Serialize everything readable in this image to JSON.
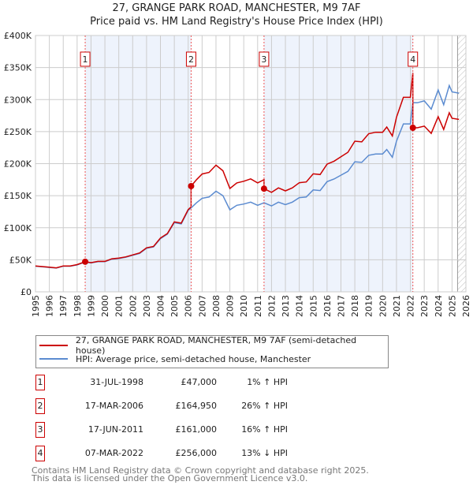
{
  "header": {
    "title": "27, GRANGE PARK ROAD, MANCHESTER, M9 7AF",
    "subtitle": "Price paid vs. HM Land Registry's House Price Index (HPI)"
  },
  "chart_data": {
    "type": "line",
    "ylim": [
      0,
      400000
    ],
    "xlim": [
      1995,
      2026
    ],
    "y_ticks": [
      {
        "v": 0,
        "label": "£0"
      },
      {
        "v": 50000,
        "label": "£50K"
      },
      {
        "v": 100000,
        "label": "£100K"
      },
      {
        "v": 150000,
        "label": "£150K"
      },
      {
        "v": 200000,
        "label": "£200K"
      },
      {
        "v": 250000,
        "label": "£250K"
      },
      {
        "v": 300000,
        "label": "£300K"
      },
      {
        "v": 350000,
        "label": "£350K"
      },
      {
        "v": 400000,
        "label": "£400K"
      }
    ],
    "x_ticks": [
      "1995",
      "1996",
      "1997",
      "1998",
      "1999",
      "2000",
      "2001",
      "2002",
      "2003",
      "2004",
      "2005",
      "2006",
      "2007",
      "2008",
      "2009",
      "2010",
      "2011",
      "2012",
      "2013",
      "2014",
      "2015",
      "2016",
      "2017",
      "2018",
      "2019",
      "2020",
      "2021",
      "2022",
      "2023",
      "2024",
      "2025",
      "2026"
    ],
    "grid": true,
    "hatched_from": 2025.4,
    "colors": {
      "property": "#cc0000",
      "hpi": "#5b8bd0",
      "shade": "#eef3fc"
    },
    "hpi_series": {
      "name": "HPI: Average price, semi-detached house, Manchester",
      "x": [
        1995,
        1995.5,
        1996,
        1996.5,
        1997,
        1997.5,
        1998,
        1998.58,
        1999,
        1999.5,
        2000,
        2000.5,
        2001,
        2001.5,
        2002,
        2002.5,
        2003,
        2003.5,
        2004,
        2004.5,
        2005,
        2005.5,
        2006,
        2006.21,
        2006.6,
        2007,
        2007.5,
        2008,
        2008.5,
        2009,
        2009.5,
        2010,
        2010.5,
        2011,
        2011.46,
        2012,
        2012.5,
        2013,
        2013.5,
        2014,
        2014.5,
        2015,
        2015.5,
        2016,
        2016.5,
        2017,
        2017.5,
        2018,
        2018.5,
        2019,
        2019.5,
        2020,
        2020.3,
        2020.7,
        2021,
        2021.5,
        2022,
        2022.18,
        2022.5,
        2023,
        2023.5,
        2024,
        2024.4,
        2024.8,
        2025,
        2025.5
      ],
      "y": [
        40000,
        39000,
        38000,
        37000,
        40000,
        40000,
        42000,
        46500,
        45000,
        47000,
        47000,
        51000,
        52000,
        54000,
        57000,
        60000,
        68000,
        70000,
        83000,
        90000,
        108000,
        106000,
        127000,
        131000,
        139000,
        146000,
        148000,
        157000,
        150000,
        128000,
        135000,
        137000,
        140000,
        135000,
        139000,
        134000,
        140000,
        136000,
        140000,
        147000,
        148000,
        159000,
        158000,
        172000,
        176000,
        182000,
        188000,
        203000,
        202000,
        213000,
        215000,
        215000,
        222000,
        210000,
        235000,
        262000,
        262000,
        295000,
        295000,
        298000,
        285000,
        315000,
        292000,
        322000,
        312000,
        310000
      ]
    },
    "property_series": {
      "name": "27, GRANGE PARK ROAD, MANCHESTER, M9 7AF (semi-detached house)"
    },
    "sales": [
      {
        "n": "1",
        "t": 1998.58,
        "date": "31-JUL-1998",
        "price": 47000,
        "price_label": "£47,000",
        "hpi_label": "1% ↑ HPI"
      },
      {
        "n": "2",
        "t": 2006.21,
        "date": "17-MAR-2006",
        "price": 164950,
        "price_label": "£164,950",
        "hpi_label": "26% ↑ HPI"
      },
      {
        "n": "3",
        "t": 2011.46,
        "date": "17-JUN-2011",
        "price": 161000,
        "price_label": "£161,000",
        "hpi_label": "16% ↑ HPI"
      },
      {
        "n": "4",
        "t": 2022.18,
        "date": "07-MAR-2022",
        "price": 256000,
        "price_label": "£256,000",
        "hpi_label": "13% ↓ HPI"
      }
    ]
  },
  "legend": {
    "property": "27, GRANGE PARK ROAD, MANCHESTER, M9 7AF (semi-detached house)",
    "hpi": "HPI: Average price, semi-detached house, Manchester"
  },
  "footer": {
    "line1": "Contains HM Land Registry data © Crown copyright and database right 2025.",
    "line2": "This data is licensed under the Open Government Licence v3.0."
  }
}
